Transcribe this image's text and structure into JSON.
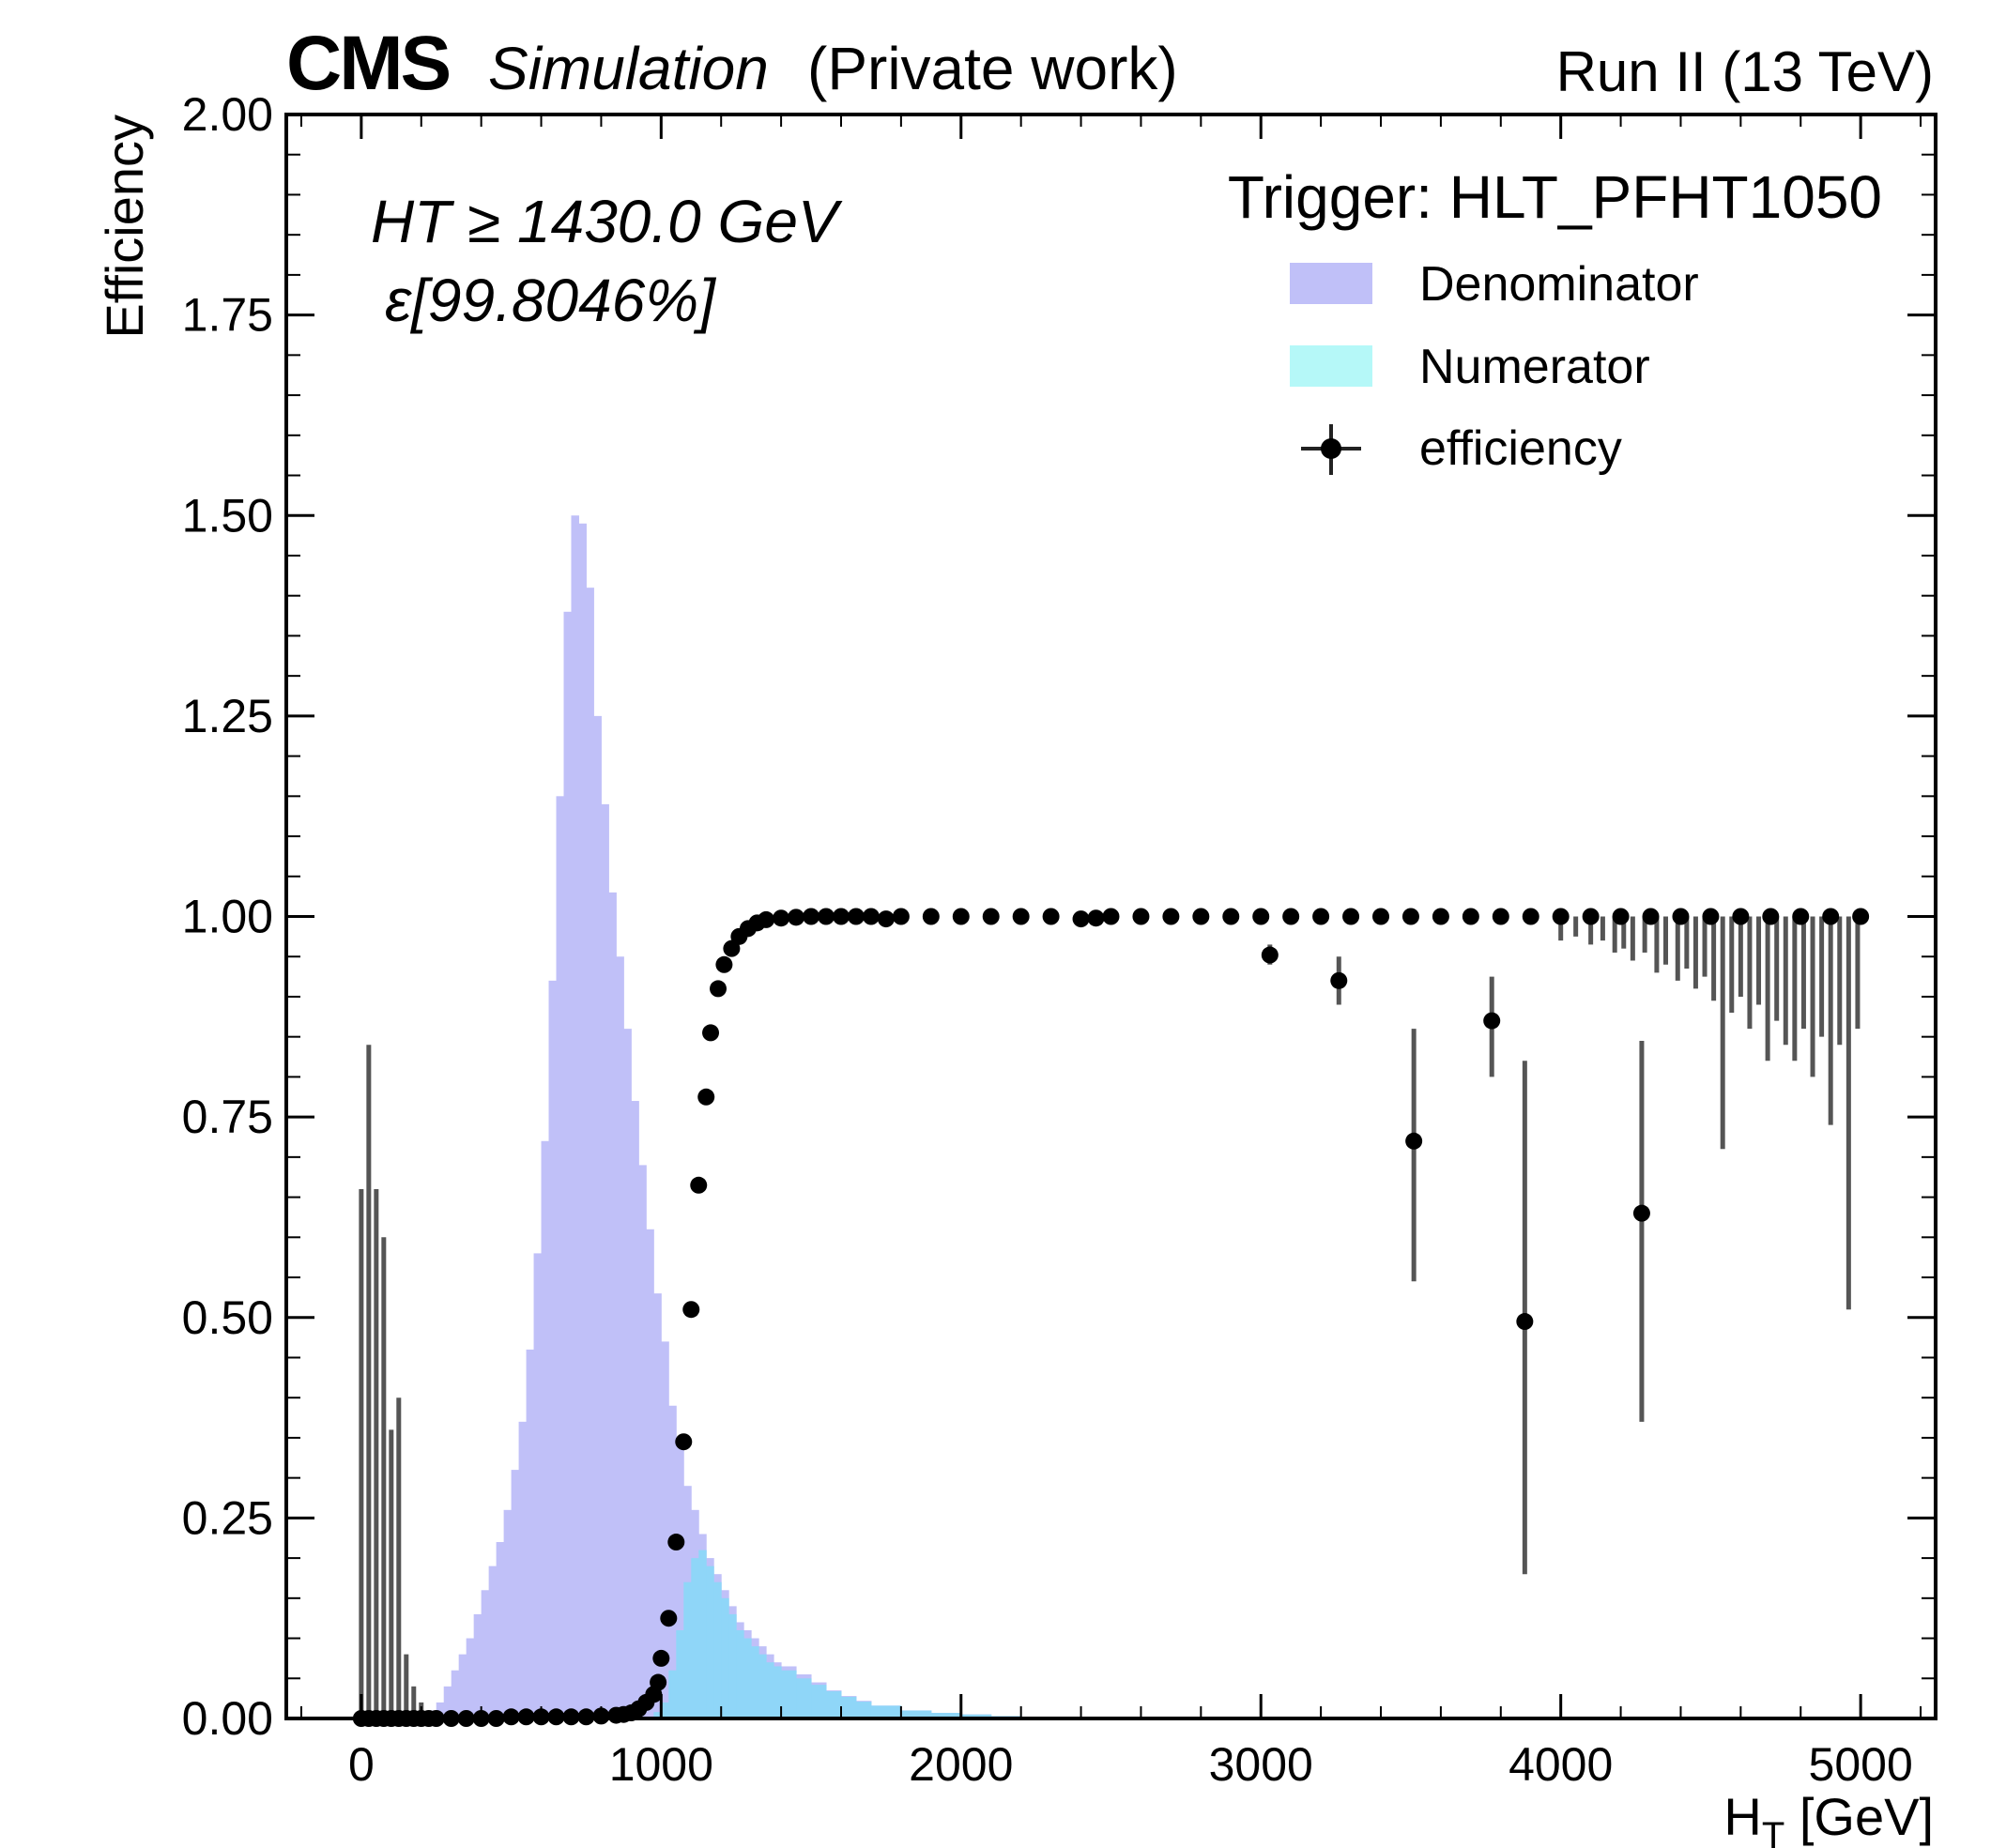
{
  "header": {
    "cms": "CMS",
    "simulation": "Simulation",
    "private": "(Private work)",
    "run": "Run II (13 TeV)"
  },
  "annotation": {
    "ht_cut": "HT ≥ 1430.0 GeV",
    "efficiency": "ε[99.8046%]"
  },
  "legend": {
    "title": "Trigger: HLT_PFHT1050",
    "entries": [
      {
        "label": "Denominator",
        "color": "#c0c0f8"
      },
      {
        "label": "Numerator",
        "color": "#b5f8f8"
      },
      {
        "label": "efficiency",
        "color": "#000000"
      }
    ]
  },
  "chart_data": {
    "type": "bar",
    "ylabel": "Efficiency",
    "xlabel_main": "H",
    "xlabel_sub": "T",
    "xlabel_rest": " [GeV]",
    "xlim": [
      -250,
      5250
    ],
    "ylim": [
      0,
      2.0
    ],
    "xticks": [
      0,
      1000,
      2000,
      3000,
      4000,
      5000
    ],
    "xtick_labels": [
      "0",
      "1000",
      "2000",
      "3000",
      "4000",
      "5000"
    ],
    "yticks": [
      0,
      0.25,
      0.5,
      0.75,
      1.0,
      1.25,
      1.5,
      1.75,
      2.0
    ],
    "ytick_labels": [
      "0.00",
      "0.25",
      "0.50",
      "0.75",
      "1.00",
      "1.25",
      "1.50",
      "1.75",
      "2.00"
    ],
    "colors": {
      "denominator": "#c0c0f8",
      "numerator": "#b5f8f8",
      "overlap": "#8fd6f8",
      "efficiency": "#000000",
      "error_bar": "#555555"
    },
    "denominator": {
      "name": "Denominator",
      "x": [
        225,
        250,
        275,
        300,
        325,
        350,
        375,
        400,
        425,
        450,
        475,
        500,
        525,
        550,
        575,
        600,
        625,
        650,
        675,
        700,
        725,
        750,
        775,
        800,
        825,
        850,
        875,
        900,
        925,
        950,
        975,
        1000,
        1025,
        1050,
        1075,
        1100,
        1125,
        1150,
        1175,
        1200,
        1225,
        1250,
        1275,
        1300,
        1325,
        1350,
        1375,
        1400,
        1450,
        1500,
        1550,
        1600,
        1650,
        1700,
        1800,
        1900,
        2000,
        2100,
        2200,
        2300
      ],
      "values": [
        0.01,
        0.02,
        0.04,
        0.06,
        0.08,
        0.1,
        0.13,
        0.16,
        0.19,
        0.22,
        0.26,
        0.31,
        0.37,
        0.46,
        0.58,
        0.72,
        0.92,
        1.15,
        1.38,
        1.5,
        1.49,
        1.41,
        1.25,
        1.14,
        1.03,
        0.95,
        0.86,
        0.77,
        0.69,
        0.61,
        0.53,
        0.47,
        0.39,
        0.34,
        0.29,
        0.26,
        0.23,
        0.2,
        0.18,
        0.16,
        0.14,
        0.12,
        0.11,
        0.1,
        0.09,
        0.08,
        0.07,
        0.065,
        0.055,
        0.045,
        0.035,
        0.028,
        0.022,
        0.016,
        0.01,
        0.007,
        0.005,
        0.003,
        0.002,
        0.001
      ]
    },
    "numerator": {
      "name": "Numerator",
      "x": [
        950,
        975,
        1000,
        1025,
        1050,
        1075,
        1100,
        1125,
        1150,
        1175,
        1200,
        1225,
        1250,
        1275,
        1300,
        1325,
        1350,
        1375,
        1400,
        1450,
        1500,
        1550,
        1600,
        1650,
        1700,
        1800,
        1900,
        2000,
        2100,
        2200,
        2300
      ],
      "values": [
        0.002,
        0.008,
        0.02,
        0.06,
        0.11,
        0.17,
        0.2,
        0.21,
        0.19,
        0.17,
        0.15,
        0.13,
        0.11,
        0.1,
        0.09,
        0.08,
        0.07,
        0.065,
        0.06,
        0.05,
        0.042,
        0.034,
        0.027,
        0.021,
        0.016,
        0.01,
        0.007,
        0.005,
        0.003,
        0.002,
        0.001
      ]
    },
    "efficiency": {
      "name": "efficiency",
      "points": [
        [
          0,
          0
        ],
        [
          25,
          0
        ],
        [
          50,
          0
        ],
        [
          75,
          0
        ],
        [
          100,
          0
        ],
        [
          125,
          0
        ],
        [
          150,
          0
        ],
        [
          175,
          0
        ],
        [
          200,
          0
        ],
        [
          225,
          0
        ],
        [
          250,
          0
        ],
        [
          300,
          0
        ],
        [
          350,
          0
        ],
        [
          400,
          0
        ],
        [
          450,
          0
        ],
        [
          500,
          0.002
        ],
        [
          550,
          0.002
        ],
        [
          600,
          0.002
        ],
        [
          650,
          0.002
        ],
        [
          700,
          0.002
        ],
        [
          750,
          0.002
        ],
        [
          800,
          0.003
        ],
        [
          850,
          0.004
        ],
        [
          875,
          0.005
        ],
        [
          900,
          0.007
        ],
        [
          925,
          0.012
        ],
        [
          950,
          0.02
        ],
        [
          975,
          0.03
        ],
        [
          990,
          0.045
        ],
        [
          1000,
          0.075
        ],
        [
          1025,
          0.125
        ],
        [
          1050,
          0.22
        ],
        [
          1075,
          0.345
        ],
        [
          1100,
          0.51
        ],
        [
          1125,
          0.665
        ],
        [
          1150,
          0.775
        ],
        [
          1165,
          0.855
        ],
        [
          1190,
          0.91
        ],
        [
          1210,
          0.94
        ],
        [
          1235,
          0.96
        ],
        [
          1260,
          0.975
        ],
        [
          1290,
          0.985
        ],
        [
          1320,
          0.992
        ],
        [
          1350,
          0.996
        ],
        [
          1400,
          0.998
        ],
        [
          1450,
          0.999
        ],
        [
          1500,
          1.0
        ],
        [
          1550,
          1.0
        ],
        [
          1600,
          1.0
        ],
        [
          1650,
          1.0
        ],
        [
          1700,
          1.0
        ],
        [
          1750,
          0.997
        ],
        [
          1800,
          1.0
        ],
        [
          1900,
          1.0
        ],
        [
          2000,
          1.0
        ],
        [
          2100,
          1.0
        ],
        [
          2200,
          1.0
        ],
        [
          2300,
          1.0
        ],
        [
          2400,
          0.997
        ],
        [
          2450,
          0.998
        ],
        [
          2500,
          1.0
        ],
        [
          2600,
          1.0
        ],
        [
          2700,
          1.0
        ],
        [
          2800,
          1.0
        ],
        [
          2900,
          1.0
        ],
        [
          3000,
          1.0
        ],
        [
          3030,
          0.952
        ],
        [
          3100,
          1.0
        ],
        [
          3200,
          1.0
        ],
        [
          3260,
          0.92
        ],
        [
          3300,
          1.0
        ],
        [
          3400,
          1.0
        ],
        [
          3500,
          1.0
        ],
        [
          3510,
          0.72
        ],
        [
          3600,
          1.0
        ],
        [
          3700,
          1.0
        ],
        [
          3770,
          0.87
        ],
        [
          3800,
          1.0
        ],
        [
          3880,
          0.495
        ],
        [
          3900,
          1.0
        ],
        [
          4000,
          1.0
        ],
        [
          4100,
          1.0
        ],
        [
          4200,
          1.0
        ],
        [
          4270,
          0.63
        ],
        [
          4300,
          1.0
        ],
        [
          4400,
          1.0
        ],
        [
          4500,
          1.0
        ],
        [
          4600,
          1.0
        ],
        [
          4700,
          1.0
        ],
        [
          4800,
          1.0
        ],
        [
          4900,
          1.0
        ],
        [
          5000,
          1.0
        ]
      ],
      "error_bars": [
        [
          0,
          0,
          0.66
        ],
        [
          25,
          0,
          0.84
        ],
        [
          50,
          0,
          0.66
        ],
        [
          75,
          0,
          0.6
        ],
        [
          100,
          0,
          0.36
        ],
        [
          125,
          0,
          0.4
        ],
        [
          150,
          0,
          0.08
        ],
        [
          175,
          0,
          0.04
        ],
        [
          200,
          0,
          0.02
        ],
        [
          3030,
          0.94,
          0.965
        ],
        [
          3260,
          0.89,
          0.95
        ],
        [
          3510,
          0.545,
          0.86
        ],
        [
          3770,
          0.8,
          0.925
        ],
        [
          3880,
          0.18,
          0.82
        ],
        [
          4270,
          0.37,
          0.845
        ],
        [
          4000,
          0.97,
          1.0
        ],
        [
          4050,
          0.975,
          1.0
        ],
        [
          4100,
          0.965,
          1.0
        ],
        [
          4140,
          0.97,
          1.0
        ],
        [
          4180,
          0.955,
          1.0
        ],
        [
          4210,
          0.96,
          1.0
        ],
        [
          4240,
          0.945,
          1.0
        ],
        [
          4280,
          0.955,
          1.0
        ],
        [
          4320,
          0.93,
          1.0
        ],
        [
          4350,
          0.94,
          1.0
        ],
        [
          4390,
          0.92,
          1.0
        ],
        [
          4420,
          0.935,
          1.0
        ],
        [
          4450,
          0.91,
          1.0
        ],
        [
          4480,
          0.925,
          1.0
        ],
        [
          4510,
          0.895,
          1.0
        ],
        [
          4540,
          0.71,
          1.0
        ],
        [
          4570,
          0.88,
          1.0
        ],
        [
          4600,
          0.9,
          1.0
        ],
        [
          4630,
          0.86,
          1.0
        ],
        [
          4660,
          0.89,
          1.0
        ],
        [
          4690,
          0.82,
          1.0
        ],
        [
          4720,
          0.87,
          1.0
        ],
        [
          4750,
          0.84,
          1.0
        ],
        [
          4780,
          0.82,
          1.0
        ],
        [
          4810,
          0.86,
          1.0
        ],
        [
          4840,
          0.8,
          1.0
        ],
        [
          4870,
          0.85,
          1.0
        ],
        [
          4900,
          0.74,
          1.0
        ],
        [
          4930,
          0.84,
          1.0
        ],
        [
          4960,
          0.51,
          1.0
        ],
        [
          4990,
          0.86,
          1.0
        ]
      ]
    }
  }
}
